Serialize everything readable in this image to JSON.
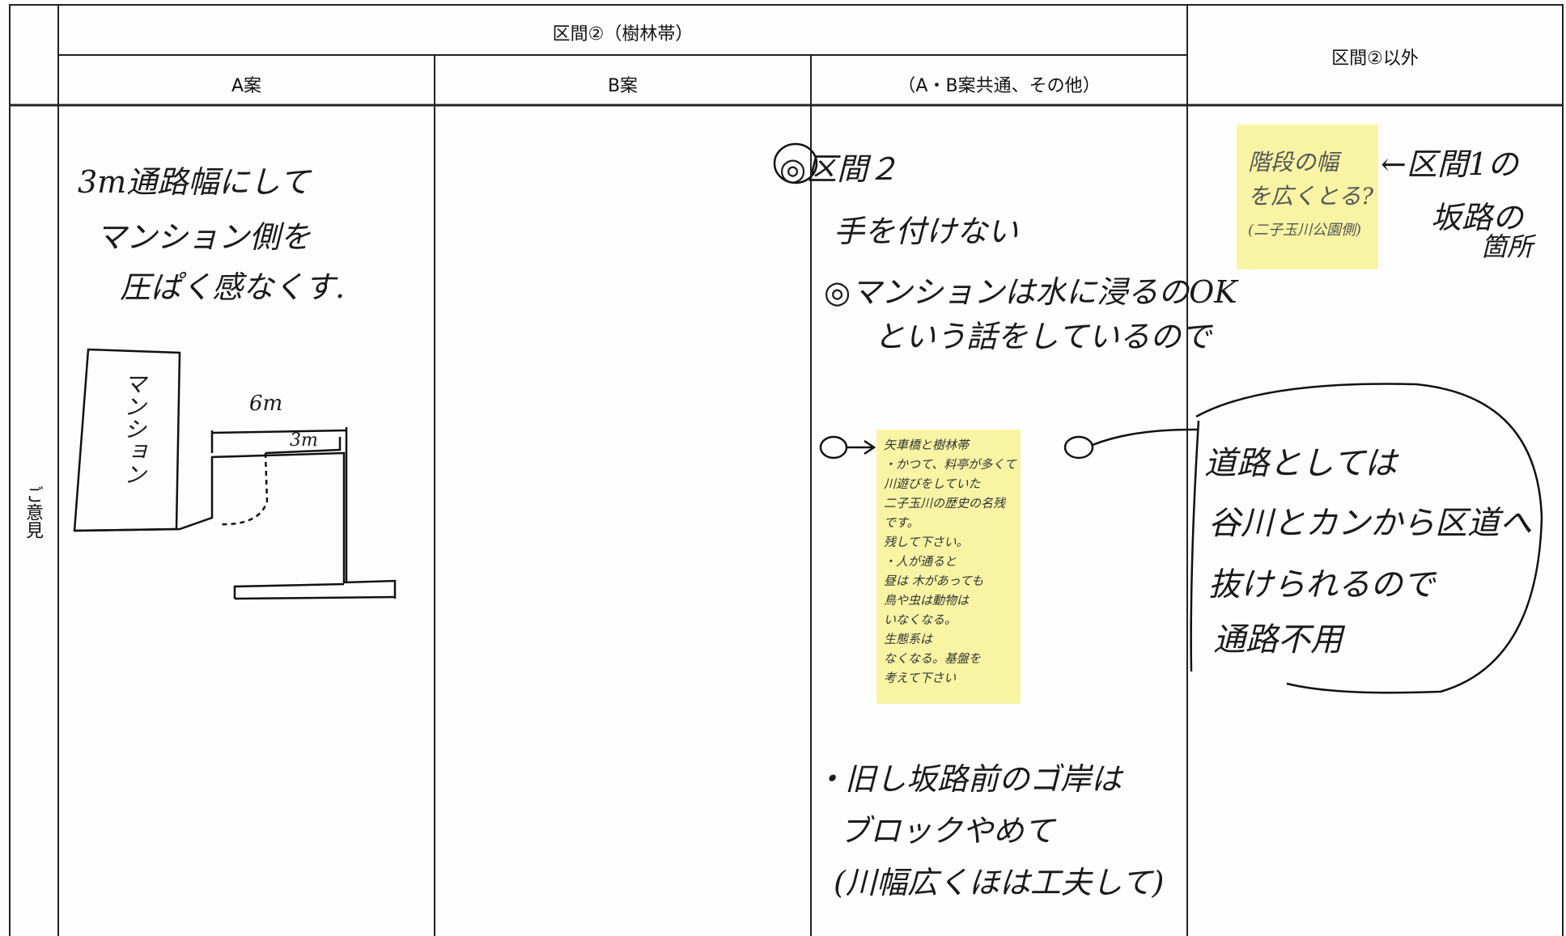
{
  "table": {
    "header": {
      "section": "区間②（樹林帯）",
      "other": "区間②以外",
      "columns": [
        "A案",
        "B案",
        "（A・B案共通、その他）"
      ]
    },
    "row_label": "ご意見"
  },
  "notes": {
    "a": [
      "3m通路幅にして",
      "マンション側を",
      "圧ぱく感なくす."
    ],
    "a_sketch": {
      "building": "マンション",
      "width_total": "6m",
      "width_path": "3m"
    },
    "c_main": [
      "◎区間２",
      "手を付けない",
      "◎マンションは水に浸るのOK",
      "という話をしているので"
    ],
    "c_sticky": [
      "矢車橋と樹林帯",
      "・かつて、料亭が多くて",
      "川遊びをしていた",
      "二子玉川の歴史の名残",
      "です。",
      "残して下さい。",
      "・人が通ると",
      "昼は 木があっても",
      "鳥や虫は動物は",
      "いなくなる。",
      "生態系は",
      "なくなる。基盤を",
      "考えて下さい"
    ],
    "c_bottom": [
      "・旧し坂路前のゴ岸は",
      "ブロックやめて",
      "(川幅広くほは工夫して)"
    ],
    "d_sticky": [
      "階段の幅",
      "を広くとる?",
      "(二子玉川公園側)"
    ],
    "d_arrow": [
      "←区間1の",
      "坂路の",
      "箇所"
    ],
    "d_main": [
      "道路としては",
      "谷川とカンから区道へ",
      "抜けられるので",
      "通路不用"
    ]
  }
}
